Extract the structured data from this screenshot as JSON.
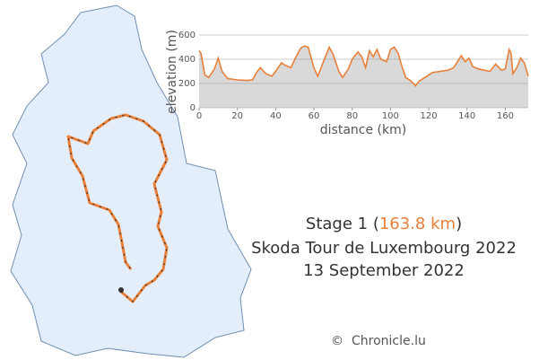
{
  "chart_data": {
    "type": "area",
    "x_label": "distance (km)",
    "y_label": "elevation (m)",
    "x": [
      0,
      1,
      3,
      5,
      8,
      10,
      12,
      15,
      20,
      25,
      28,
      30,
      32,
      35,
      38,
      40,
      43,
      45,
      48,
      50,
      53,
      55,
      57,
      60,
      62,
      65,
      67,
      68,
      70,
      73,
      75,
      78,
      80,
      83,
      85,
      87,
      89,
      91,
      93,
      95,
      98,
      100,
      102,
      104,
      106,
      108,
      110,
      112,
      113,
      115,
      118,
      122,
      126,
      130,
      133,
      135,
      137,
      139,
      141,
      143,
      146,
      149,
      152,
      155,
      158,
      160,
      162,
      163,
      164,
      166,
      168,
      170,
      172
    ],
    "series": [
      {
        "name": "elevation",
        "color": "#e8803a",
        "fill": "#d9d9d9",
        "values": [
          470,
          450,
          270,
          250,
          320,
          410,
          300,
          240,
          230,
          225,
          230,
          290,
          330,
          280,
          260,
          300,
          370,
          350,
          330,
          400,
          490,
          510,
          500,
          330,
          260,
          380,
          460,
          500,
          440,
          300,
          250,
          320,
          400,
          460,
          420,
          330,
          470,
          420,
          480,
          400,
          380,
          480,
          500,
          450,
          340,
          250,
          230,
          200,
          180,
          220,
          250,
          290,
          300,
          310,
          330,
          380,
          430,
          380,
          410,
          340,
          320,
          310,
          300,
          360,
          310,
          320,
          480,
          450,
          280,
          330,
          410,
          370,
          260
        ]
      }
    ],
    "xlim": [
      0,
      172
    ],
    "ylim": [
      0,
      600
    ],
    "xticks": [
      0,
      20,
      40,
      60,
      80,
      100,
      120,
      140,
      160
    ],
    "yticks": [
      0,
      200,
      400,
      600
    ],
    "grid": true
  },
  "caption": {
    "stage_prefix": "Stage 1 (",
    "distance": "163.8 km",
    "stage_suffix": ")",
    "race": "Skoda Tour de Luxembourg 2022",
    "date": "13 September 2022"
  },
  "credit": {
    "symbol": "©",
    "source": "Chronicle.lu"
  }
}
